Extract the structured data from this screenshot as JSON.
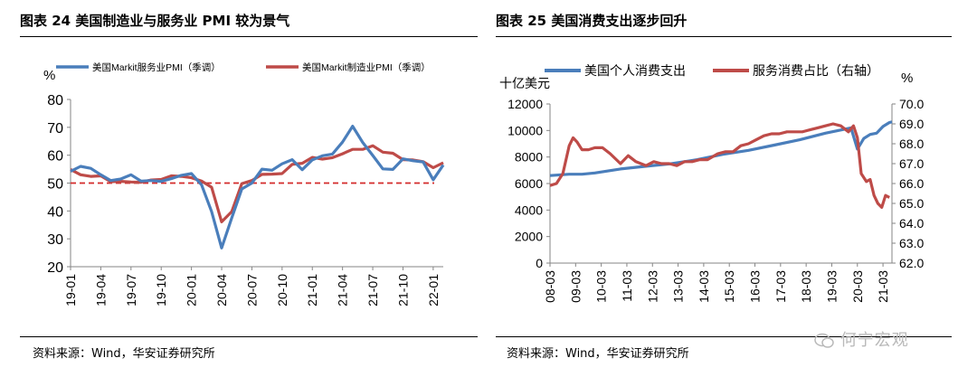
{
  "left": {
    "title": "图表 24  美国制造业与服务业 PMI 较为景气",
    "source": "资料来源：Wind，华安证券研究所"
  },
  "right": {
    "title": "图表 25  美国消费支出逐步回升",
    "source": "资料来源：Wind，华安证券研究所"
  },
  "watermark": "何宁宏观",
  "colors": {
    "blue": "#4a7ebb",
    "red": "#be4b48",
    "dashed": "#d42a2a"
  },
  "chart_data": [
    {
      "type": "line",
      "title": "美国制造业与服务业 PMI 较为景气",
      "ylabel": "%",
      "ylim": [
        20,
        80
      ],
      "yticks": [
        "20",
        "30",
        "40",
        "50",
        "60",
        "70",
        "80"
      ],
      "categories": [
        "19-01",
        "19-02",
        "19-03",
        "19-04",
        "19-05",
        "19-06",
        "19-07",
        "19-08",
        "19-09",
        "19-10",
        "19-11",
        "19-12",
        "20-01",
        "20-02",
        "20-03",
        "20-04",
        "20-05",
        "20-06",
        "20-07",
        "20-08",
        "20-09",
        "20-10",
        "20-11",
        "20-12",
        "21-01",
        "21-02",
        "21-03",
        "21-04",
        "21-05",
        "21-06",
        "21-07",
        "21-08",
        "21-09",
        "21-10",
        "21-11",
        "21-12",
        "22-01",
        "22-02"
      ],
      "xticks": [
        "19-01",
        "19-04",
        "19-07",
        "19-10",
        "20-01",
        "20-04",
        "20-07",
        "20-10",
        "21-01",
        "21-04",
        "21-07",
        "21-10",
        "22-01"
      ],
      "reference_line": {
        "value": 50,
        "style": "dashed"
      },
      "series": [
        {
          "name": "美国Markit服务业PMI（季调）",
          "color": "#4a7ebb",
          "values": [
            54.2,
            56.0,
            55.3,
            53.0,
            50.9,
            51.5,
            53.0,
            50.7,
            50.9,
            50.6,
            51.6,
            52.8,
            53.4,
            49.4,
            39.8,
            26.7,
            37.5,
            47.9,
            50.0,
            55.0,
            54.6,
            56.9,
            58.4,
            54.8,
            58.3,
            59.8,
            60.4,
            64.7,
            70.4,
            64.6,
            59.9,
            55.1,
            54.9,
            58.7,
            58.0,
            57.6,
            51.2,
            56.5
          ]
        },
        {
          "name": "美国Markit制造业PMI（季调）",
          "color": "#be4b48",
          "values": [
            54.9,
            53.0,
            52.4,
            52.6,
            50.5,
            50.6,
            50.4,
            50.3,
            51.1,
            51.3,
            52.6,
            52.4,
            51.9,
            50.7,
            48.5,
            36.1,
            39.8,
            49.8,
            50.9,
            53.1,
            53.2,
            53.4,
            56.7,
            57.1,
            59.2,
            58.6,
            59.1,
            60.5,
            62.1,
            62.1,
            63.4,
            61.1,
            60.7,
            58.4,
            58.3,
            57.7,
            55.5,
            57.3
          ]
        }
      ]
    },
    {
      "type": "line",
      "title": "美国消费支出逐步回升",
      "ylabel": "十亿美元",
      "ylabel_right": "%",
      "ylim": [
        0,
        12000
      ],
      "ylim_right": [
        62,
        70
      ],
      "yticks": [
        "0",
        "2000",
        "4000",
        "6000",
        "8000",
        "10000",
        "12000"
      ],
      "yticks_right": [
        "62.0",
        "63.0",
        "64.0",
        "65.0",
        "66.0",
        "67.0",
        "68.0",
        "69.0",
        "70.0"
      ],
      "xticks": [
        "08-03",
        "09-03",
        "10-03",
        "11-03",
        "12-03",
        "13-03",
        "14-03",
        "15-03",
        "16-03",
        "17-03",
        "18-03",
        "19-03",
        "20-03",
        "21-03"
      ],
      "x_start": 2008.25,
      "x_end": 2021.6,
      "series": [
        {
          "name": "美国个人消费支出",
          "axis": "left",
          "color": "#4a7ebb",
          "x": [
            2008.25,
            2009.0,
            2009.5,
            2010.0,
            2011.0,
            2012.0,
            2013.0,
            2014.0,
            2015.0,
            2016.0,
            2017.0,
            2018.0,
            2019.0,
            2019.75,
            2020.0,
            2020.25,
            2020.5,
            2020.75,
            2021.0,
            2021.25,
            2021.5,
            2021.6
          ],
          "values": [
            6600,
            6700,
            6700,
            6800,
            7100,
            7300,
            7500,
            7800,
            8200,
            8500,
            8900,
            9300,
            9800,
            10100,
            10200,
            8600,
            9400,
            9700,
            9800,
            10300,
            10600,
            10650
          ]
        },
        {
          "name": "服务消费占比（右轴）",
          "axis": "right",
          "color": "#be4b48",
          "x": [
            2008.25,
            2008.5,
            2008.75,
            2009.0,
            2009.15,
            2009.3,
            2009.5,
            2009.75,
            2010.0,
            2010.3,
            2010.6,
            2011.0,
            2011.3,
            2011.6,
            2012.0,
            2012.3,
            2012.6,
            2012.9,
            2013.2,
            2013.5,
            2013.8,
            2014.1,
            2014.4,
            2014.8,
            2015.1,
            2015.4,
            2015.7,
            2016.0,
            2016.3,
            2016.6,
            2016.9,
            2017.2,
            2017.5,
            2017.8,
            2018.1,
            2018.4,
            2018.7,
            2019.0,
            2019.3,
            2019.6,
            2019.9,
            2020.1,
            2020.25,
            2020.4,
            2020.6,
            2020.75,
            2020.9,
            2021.05,
            2021.2,
            2021.35,
            2021.5
          ],
          "values": [
            65.9,
            66.0,
            66.5,
            67.9,
            68.3,
            68.1,
            67.7,
            67.7,
            67.8,
            67.8,
            67.5,
            67.0,
            67.4,
            67.1,
            66.9,
            67.1,
            67.0,
            67.0,
            66.9,
            67.1,
            67.1,
            67.2,
            67.2,
            67.5,
            67.6,
            67.6,
            67.9,
            68.0,
            68.2,
            68.4,
            68.5,
            68.5,
            68.6,
            68.6,
            68.6,
            68.7,
            68.8,
            68.9,
            69.0,
            68.9,
            68.6,
            68.9,
            68.3,
            66.5,
            66.1,
            66.2,
            65.4,
            65.0,
            64.8,
            65.4,
            65.3
          ]
        }
      ]
    }
  ]
}
